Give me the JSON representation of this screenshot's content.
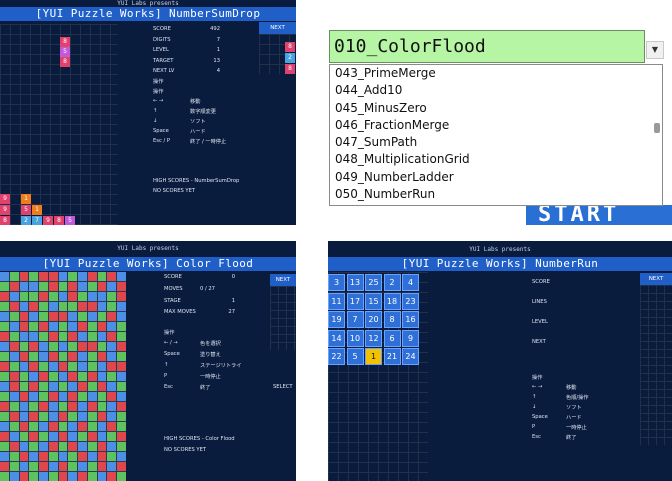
{
  "panel1": {
    "presents": "YUI Labs presents",
    "title": "[YUI Puzzle Works]  NumberSumDrop",
    "stats": [
      {
        "label": "SCORE",
        "value": "492"
      },
      {
        "label": "DIGITS",
        "value": "7"
      },
      {
        "label": "LEVEL",
        "value": "1"
      },
      {
        "label": "TARGET",
        "value": "13"
      },
      {
        "label": "NEXT LV",
        "value": "4"
      }
    ],
    "next_label": "NEXT",
    "next_values": [
      "8",
      "2",
      "8"
    ],
    "controls_header1": "操作",
    "controls_header2": "操作",
    "controls": [
      {
        "key": "← →",
        "action": "移動"
      },
      {
        "key": "↑",
        "action": "数字順変更"
      },
      {
        "key": "↓",
        "action": "ソフト"
      },
      {
        "key": "Space",
        "action": "ハード"
      },
      {
        "key": "Esc / P",
        "action": "終了 / 一時停止"
      }
    ],
    "high_scores": "HIGH SCORES - NumberSumDrop",
    "no_scores": "NO SCORES YET",
    "falling": [
      "8",
      "5",
      "8"
    ],
    "stack": [
      {
        "v": "9",
        "c": "#e0426d"
      },
      {
        "v": "1",
        "c": "#f07c1c"
      },
      {
        "v": "9",
        "c": "#e0426d"
      },
      {
        "v": "5",
        "c": "#e0426d"
      },
      {
        "v": "1",
        "c": "#f07c1c"
      },
      {
        "v": "8",
        "c": "#e0426d"
      },
      {
        "v": "2",
        "c": "#49a3e0"
      },
      {
        "v": "7",
        "c": "#49a3e0"
      },
      {
        "v": "9",
        "c": "#e0426d"
      },
      {
        "v": "8",
        "c": "#e0426d"
      },
      {
        "v": "5",
        "c": "#c05ad8"
      }
    ]
  },
  "panel2": {
    "selected": "010_ColorFlood",
    "options": [
      "043_PrimeMerge",
      "044_Add10",
      "045_MinusZero",
      "046_FractionMerge",
      "047_SumPath",
      "048_MultiplicationGrid",
      "049_NumberLadder",
      "050_NumberRun"
    ],
    "start_label": "START"
  },
  "panel3": {
    "presents": "YUI Labs presents",
    "title": "[YUI Puzzle Works]  Color Flood",
    "stats": [
      {
        "label": "SCORE",
        "value": "0"
      },
      {
        "label": "MOVES",
        "value": "0 / 27"
      },
      {
        "label": "STAGE",
        "value": "1"
      },
      {
        "label": "MAX MOVES",
        "value": "27"
      }
    ],
    "next_label": "NEXT",
    "controls_header": "操作",
    "controls": [
      {
        "key": "← / →",
        "action": "色を選択"
      },
      {
        "key": "Space",
        "action": "塗り替え"
      },
      {
        "key": "↑",
        "action": "ステージリトライ"
      },
      {
        "key": "P",
        "action": "一時停止"
      },
      {
        "key": "Esc",
        "action": "終了"
      }
    ],
    "select_label": "SELECT",
    "high_scores": "HIGH SCORES - Color Flood",
    "no_scores": "NO SCORES YET",
    "colors": {
      "red": "#e0474c",
      "green": "#5ec35e",
      "blue": "#4d8fe6"
    },
    "grid": "BGRGRRBGBRGRB GRBBGRGRBGRBR RBGGRGBRGBBGR GRBRGBGGRRBGB BGRBGRRBGBGRB GBRGRBGBRGRBG RGBBGRGRBGBRG BRGRBGBGRRGBR GBRGBRGRBGRBG RGBRGBRGBGBRR GRGBRGBRGRBGB BRGRGBGBRGRBG GBRBGRBRGBGRB RGBGRBGRBRGBR GRBRGBRGBGRBG BGRGBRGBRGBRG RBGRGBRBGRBGR GRBGBRGRBGRBG BGRBRGBGRBRGB RGBGRBRGBGRBR GBRGBGRBRGBRG"
  },
  "panel4": {
    "presents": "YUI Labs presents",
    "title": "[YUI Puzzle Works]  NumberRun",
    "labels": [
      "SCORE",
      "LINES",
      "LEVEL",
      "NEXT"
    ],
    "next_label": "NEXT",
    "controls_header": "操作",
    "controls": [
      {
        "key": "← →",
        "action": "移動"
      },
      {
        "key": "↑",
        "action": "色順/操作"
      },
      {
        "key": "↓",
        "action": "ソフト"
      },
      {
        "key": "Space",
        "action": "ハード"
      },
      {
        "key": "P",
        "action": "一時停止"
      },
      {
        "key": "Esc",
        "action": "終了"
      }
    ],
    "tiles": [
      [
        "3",
        "13",
        "25",
        "2",
        "4"
      ],
      [
        "11",
        "17",
        "15",
        "18",
        "23"
      ],
      [
        "19",
        "7",
        "20",
        "8",
        "16"
      ],
      [
        "14",
        "10",
        "12",
        "6",
        "9"
      ],
      [
        "22",
        "5",
        "1",
        "21",
        "24"
      ]
    ],
    "highlight": "1"
  }
}
